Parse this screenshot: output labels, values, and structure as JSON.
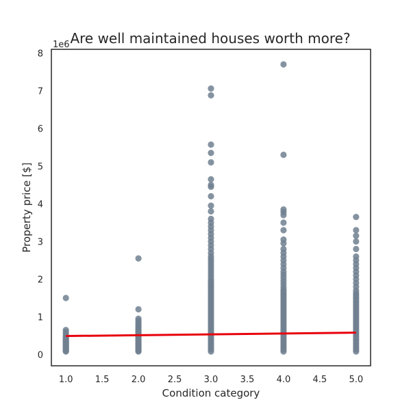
{
  "chart_data": {
    "type": "scatter",
    "title": "Are well maintained houses worth more?",
    "xlabel": "Condition category",
    "ylabel": "Property price [$]",
    "y_offset_label": "1e6",
    "xlim": [
      0.8,
      5.2
    ],
    "ylim": [
      -300000,
      8100000
    ],
    "x_ticks": [
      1.0,
      1.5,
      2.0,
      2.5,
      3.0,
      3.5,
      4.0,
      4.5,
      5.0
    ],
    "x_tick_labels": [
      "1.0",
      "1.5",
      "2.0",
      "2.5",
      "3.0",
      "3.5",
      "4.0",
      "4.5",
      "5.0"
    ],
    "y_ticks": [
      0,
      1000000,
      2000000,
      3000000,
      4000000,
      5000000,
      6000000,
      7000000,
      8000000
    ],
    "y_tick_labels": [
      "0",
      "1",
      "2",
      "3",
      "4",
      "5",
      "6",
      "7",
      "8"
    ],
    "grid": false,
    "colors": {
      "points": "#708090",
      "regression": "#e8000b"
    },
    "series": [
      {
        "x": 1,
        "y": [
          80000,
          100000,
          120000,
          140000,
          160000,
          180000,
          200000,
          220000,
          240000,
          260000,
          280000,
          300000,
          320000,
          340000,
          360000,
          380000,
          400000,
          430000,
          460000,
          500000,
          550000,
          600000,
          650000,
          1500000
        ]
      },
      {
        "x": 2,
        "y": [
          80000,
          100000,
          130000,
          160000,
          190000,
          220000,
          250000,
          280000,
          310000,
          340000,
          370000,
          400000,
          430000,
          460000,
          490000,
          520000,
          550000,
          580000,
          610000,
          640000,
          680000,
          720000,
          760000,
          800000,
          850000,
          900000,
          950000,
          1200000,
          2550000
        ]
      },
      {
        "x": 3,
        "y": [
          80000,
          130000,
          180000,
          230000,
          280000,
          330000,
          380000,
          430000,
          480000,
          530000,
          580000,
          630000,
          680000,
          730000,
          780000,
          830000,
          880000,
          930000,
          980000,
          1030000,
          1080000,
          1130000,
          1180000,
          1230000,
          1280000,
          1330000,
          1380000,
          1430000,
          1480000,
          1530000,
          1580000,
          1630000,
          1680000,
          1730000,
          1780000,
          1830000,
          1880000,
          1930000,
          1980000,
          2050000,
          2120000,
          2190000,
          2260000,
          2330000,
          2400000,
          2470000,
          2540000,
          2610000,
          2700000,
          2800000,
          2900000,
          3000000,
          3100000,
          3200000,
          3300000,
          3400000,
          3500000,
          3600000,
          3800000,
          3950000,
          4200000,
          4450000,
          4500000,
          4650000,
          5100000,
          5350000,
          5570000,
          6880000,
          7060000
        ]
      },
      {
        "x": 4,
        "y": [
          80000,
          130000,
          180000,
          230000,
          280000,
          330000,
          380000,
          430000,
          480000,
          530000,
          580000,
          630000,
          680000,
          730000,
          780000,
          830000,
          880000,
          930000,
          980000,
          1030000,
          1080000,
          1130000,
          1180000,
          1230000,
          1280000,
          1330000,
          1380000,
          1430000,
          1480000,
          1530000,
          1580000,
          1630000,
          1680000,
          1730000,
          1800000,
          1880000,
          1960000,
          2040000,
          2120000,
          2200000,
          2300000,
          2400000,
          2500000,
          2600000,
          2700000,
          2800000,
          2950000,
          3050000,
          3300000,
          3500000,
          3700000,
          3780000,
          3850000,
          5300000,
          7700000
        ]
      },
      {
        "x": 5,
        "y": [
          80000,
          130000,
          180000,
          230000,
          280000,
          330000,
          380000,
          430000,
          480000,
          530000,
          580000,
          630000,
          680000,
          730000,
          780000,
          830000,
          880000,
          930000,
          980000,
          1030000,
          1080000,
          1130000,
          1180000,
          1230000,
          1280000,
          1330000,
          1380000,
          1430000,
          1480000,
          1530000,
          1580000,
          1630000,
          1700000,
          1800000,
          1900000,
          2000000,
          2100000,
          2200000,
          2300000,
          2400000,
          2500000,
          2600000,
          2800000,
          3000000,
          3150000,
          3300000,
          3650000
        ]
      }
    ],
    "regression": {
      "x": [
        1,
        5
      ],
      "y": [
        490000,
        580000
      ]
    }
  }
}
